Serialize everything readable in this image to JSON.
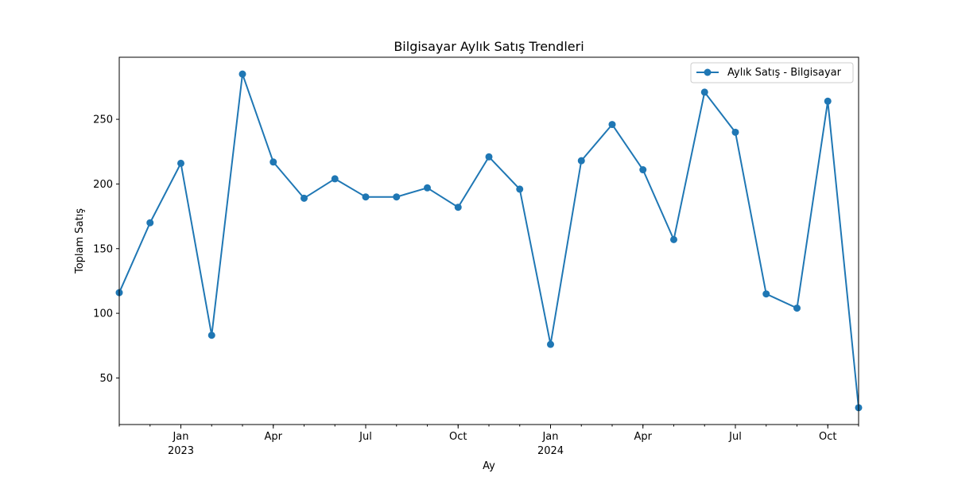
{
  "chart_data": {
    "type": "line",
    "title": "Bilgisayar Aylık Satış Trendleri",
    "xlabel": "Ay",
    "ylabel": "Toplam Satış",
    "x_type": "month",
    "x": [
      "2022-11",
      "2022-12",
      "2023-01",
      "2023-02",
      "2023-03",
      "2023-04",
      "2023-05",
      "2023-06",
      "2023-07",
      "2023-08",
      "2023-09",
      "2023-10",
      "2023-11",
      "2023-12",
      "2024-01",
      "2024-02",
      "2024-03",
      "2024-04",
      "2024-05",
      "2024-06",
      "2024-07",
      "2024-08",
      "2024-09",
      "2024-10",
      "2024-11"
    ],
    "xlim": [
      "2022-11",
      "2024-11"
    ],
    "ylim": [
      14,
      298
    ],
    "y_ticks": [
      50,
      100,
      150,
      200,
      250
    ],
    "x_ticks": [
      {
        "date": "2023-01",
        "label": "Jan",
        "sublabel": "2023"
      },
      {
        "date": "2023-04",
        "label": "Apr",
        "sublabel": ""
      },
      {
        "date": "2023-07",
        "label": "Jul",
        "sublabel": ""
      },
      {
        "date": "2023-10",
        "label": "Oct",
        "sublabel": ""
      },
      {
        "date": "2024-01",
        "label": "Jan",
        "sublabel": "2024"
      },
      {
        "date": "2024-04",
        "label": "Apr",
        "sublabel": ""
      },
      {
        "date": "2024-07",
        "label": "Jul",
        "sublabel": ""
      },
      {
        "date": "2024-10",
        "label": "Oct",
        "sublabel": ""
      }
    ],
    "grid": false,
    "legend_position": "top-right",
    "series": [
      {
        "name": "Aylık Satış - Bilgisayar",
        "color": "#1f77b4",
        "marker": "circle",
        "values": [
          116,
          170,
          216,
          83,
          285,
          217,
          189,
          204,
          190,
          190,
          197,
          182,
          221,
          196,
          76,
          218,
          246,
          211,
          157,
          271,
          240,
          115,
          104,
          264,
          27
        ]
      }
    ]
  }
}
